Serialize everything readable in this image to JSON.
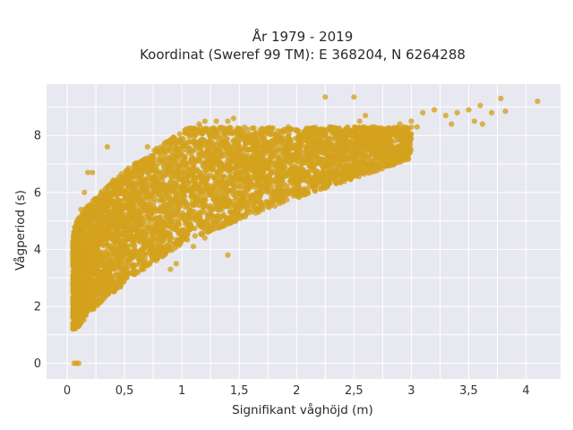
{
  "chart_data": {
    "type": "scatter",
    "title_lines": [
      "År 1979 - 2019",
      "Koordinat (Sweref 99 TM): E 368204, N 6264288"
    ],
    "xlabel": "Signifikant våghöjd (m)",
    "ylabel": "Vågperiod (s)",
    "xlim": [
      -0.18,
      4.3
    ],
    "ylim": [
      -0.55,
      9.8
    ],
    "xticks": [
      0,
      0.5,
      1,
      1.5,
      2,
      2.5,
      3,
      3.5,
      4
    ],
    "xtick_labels": [
      "0",
      "0,5",
      "1",
      "1,5",
      "2",
      "2,5",
      "3",
      "3,5",
      "4"
    ],
    "yticks": [
      0,
      2,
      4,
      6,
      8
    ],
    "ytick_labels": [
      "0",
      "2",
      "4",
      "6",
      "8"
    ],
    "grid": true,
    "plot_background": "#e8e8f0",
    "marker_color": "#d4a21c",
    "series": [
      {
        "points": [
          [
            0.05,
            1.2
          ],
          [
            0.08,
            1.3
          ],
          [
            0.1,
            1.6
          ],
          [
            0.12,
            2.0
          ],
          [
            0.07,
            2.6
          ],
          [
            0.06,
            3.4
          ],
          [
            0.1,
            4.6
          ],
          [
            0.12,
            5.4
          ],
          [
            0.15,
            6.0
          ],
          [
            0.18,
            6.7
          ],
          [
            0.22,
            6.7
          ],
          [
            0.25,
            5.5
          ],
          [
            0.3,
            4.4
          ],
          [
            0.35,
            3.1
          ],
          [
            0.4,
            2.9
          ],
          [
            0.45,
            4.0
          ],
          [
            0.5,
            5.0
          ],
          [
            0.55,
            6.3
          ],
          [
            0.6,
            6.8
          ],
          [
            0.35,
            7.6
          ],
          [
            0.65,
            7.1
          ],
          [
            0.7,
            7.6
          ],
          [
            0.75,
            6.2
          ],
          [
            0.8,
            5.1
          ],
          [
            0.85,
            4.6
          ],
          [
            0.9,
            3.3
          ],
          [
            0.95,
            3.5
          ],
          [
            1.0,
            5.6
          ],
          [
            1.05,
            6.8
          ],
          [
            1.1,
            7.8
          ],
          [
            1.15,
            8.4
          ],
          [
            1.2,
            8.5
          ],
          [
            1.3,
            8.5
          ],
          [
            1.4,
            8.5
          ],
          [
            1.45,
            8.6
          ],
          [
            1.3,
            7.4
          ],
          [
            1.25,
            6.1
          ],
          [
            1.2,
            4.4
          ],
          [
            1.1,
            4.1
          ],
          [
            1.4,
            3.8
          ],
          [
            1.5,
            6.7
          ],
          [
            1.6,
            7.5
          ],
          [
            1.7,
            7.8
          ],
          [
            1.6,
            6.4
          ],
          [
            1.75,
            6.0
          ],
          [
            1.8,
            6.4
          ],
          [
            1.9,
            7.0
          ],
          [
            2.0,
            7.4
          ],
          [
            2.1,
            7.8
          ],
          [
            2.25,
            9.35
          ],
          [
            2.5,
            9.35
          ],
          [
            2.2,
            7.6
          ],
          [
            2.4,
            7.9
          ],
          [
            2.55,
            8.5
          ],
          [
            2.6,
            8.7
          ],
          [
            2.7,
            8.1
          ],
          [
            2.8,
            8.2
          ],
          [
            2.9,
            8.4
          ],
          [
            3.0,
            8.5
          ],
          [
            3.05,
            8.3
          ],
          [
            3.1,
            8.8
          ],
          [
            3.2,
            8.9
          ],
          [
            3.3,
            8.7
          ],
          [
            3.35,
            8.4
          ],
          [
            3.4,
            8.8
          ],
          [
            3.5,
            8.9
          ],
          [
            3.55,
            8.5
          ],
          [
            3.6,
            9.05
          ],
          [
            3.62,
            8.4
          ],
          [
            3.7,
            8.8
          ],
          [
            3.78,
            9.3
          ],
          [
            3.82,
            8.85
          ],
          [
            4.1,
            9.2
          ],
          [
            0.06,
            0.0
          ],
          [
            0.08,
            0.0
          ],
          [
            0.1,
            0.0
          ]
        ]
      }
    ]
  }
}
